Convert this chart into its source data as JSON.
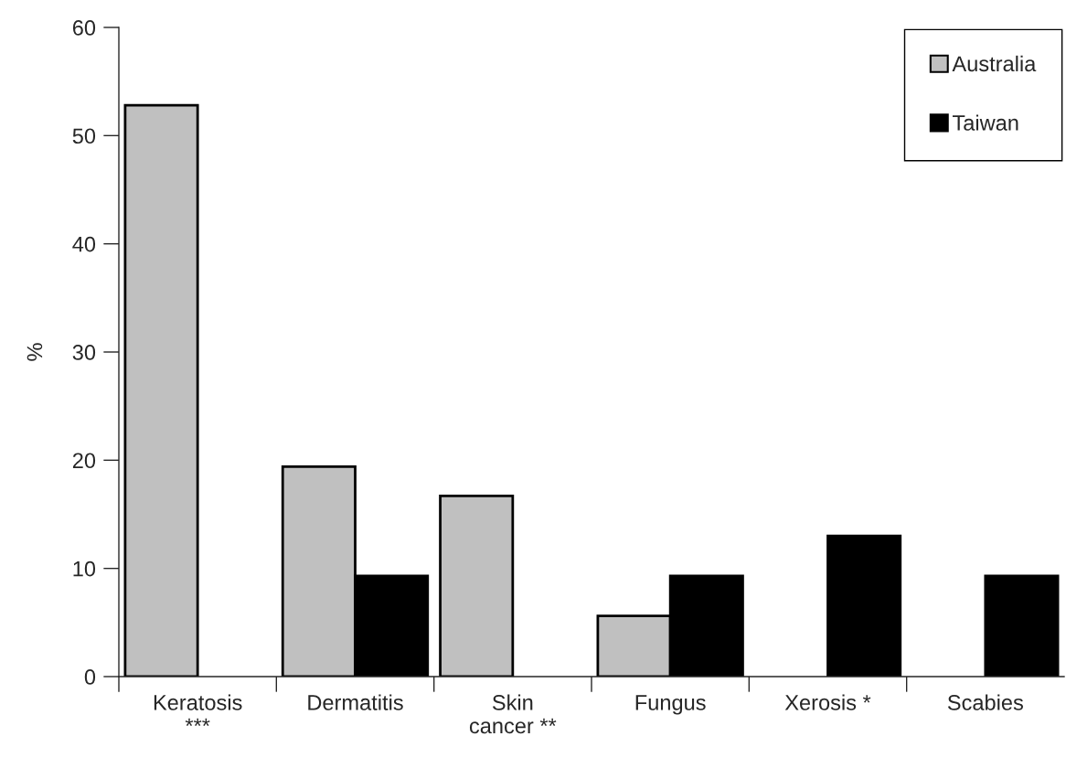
{
  "chart_data": {
    "type": "bar",
    "ylabel": "%",
    "categories": [
      "Keratosis\n***",
      "Dermatitis",
      "Skin\ncancer **",
      "Fungus",
      "Xerosis *",
      "Scabies"
    ],
    "series": [
      {
        "name": "Australia",
        "color": "#c0c0c0",
        "values": [
          52.8,
          19.4,
          16.7,
          5.6,
          null,
          null
        ]
      },
      {
        "name": "Taiwan",
        "color": "#000000",
        "values": [
          null,
          9.3,
          null,
          9.3,
          13.0,
          9.3
        ]
      }
    ],
    "ylim": [
      0,
      60
    ],
    "yticks": [
      0,
      10,
      20,
      30,
      40,
      50,
      60
    ],
    "grid": false,
    "legend": "top right"
  }
}
